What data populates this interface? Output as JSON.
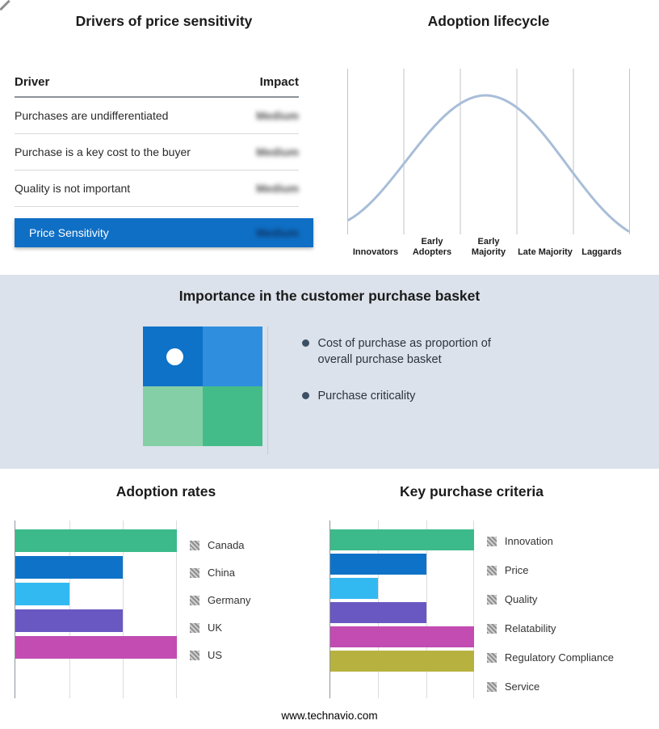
{
  "page": {
    "footer": "www.technavio.com",
    "band_bg": "#dbe2eb"
  },
  "drivers_panel": {
    "title": "Drivers of price sensitivity",
    "columns": {
      "driver": "Driver",
      "impact": "Impact"
    },
    "rows": [
      {
        "driver": "Purchases are undifferentiated",
        "impact": "Medium"
      },
      {
        "driver": "Purchase is a key cost to the buyer",
        "impact": "Medium"
      },
      {
        "driver": "Quality is not important",
        "impact": "Medium"
      }
    ],
    "highlight": {
      "driver": "Price Sensitivity",
      "impact": "Medium",
      "color": "#0f6fc5"
    }
  },
  "basket_panel": {
    "title": "Importance in the customer purchase basket",
    "bullets": [
      "Cost of purchase as proportion of overall purchase basket",
      "Purchase criticality"
    ],
    "quadrant": {
      "top_left": "#0d72c8",
      "top_right": "#2f8ede",
      "bottom_left": "#84cfa6",
      "bottom_right": "#44bc89"
    }
  },
  "chart_data": [
    {
      "id": "lifecycle",
      "type": "line",
      "title": "Adoption lifecycle",
      "categories": [
        "Innovators",
        "Early Adopters",
        "Early Majority",
        "Late Majority",
        "Laggards"
      ],
      "shape": "bell curve peaking over Early Majority",
      "curve_color": "#a8bdd8",
      "grid": true,
      "legend_position": "none"
    },
    {
      "id": "adoption_rates",
      "type": "bar",
      "orientation": "horizontal",
      "title": "Adoption rates",
      "categories": [
        "Canada",
        "China",
        "Germany",
        "UK",
        "US"
      ],
      "values": [
        3,
        2,
        1,
        2,
        3
      ],
      "xmax": 3,
      "xlim": [
        0,
        3
      ],
      "colors": [
        "#3cba8b",
        "#0e73c8",
        "#33b9f2",
        "#6a58c2",
        "#c24cb2"
      ],
      "grid": true,
      "legend_position": "right"
    },
    {
      "id": "key_purchase_criteria",
      "type": "bar",
      "orientation": "horizontal",
      "title": "Key purchase criteria",
      "categories": [
        "Innovation",
        "Price",
        "Quality",
        "Relatability",
        "Regulatory Compliance",
        "Service"
      ],
      "values": [
        3,
        2,
        1,
        2,
        3,
        3
      ],
      "xmax": 3,
      "xlim": [
        0,
        3
      ],
      "colors": [
        "#3cba8b",
        "#0e73c8",
        "#33b9f2",
        "#6a58c2",
        "#c24cb2",
        "#b7b23f"
      ],
      "grid": true,
      "legend_position": "right"
    }
  ]
}
